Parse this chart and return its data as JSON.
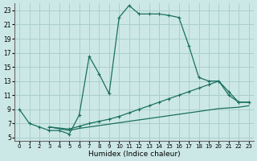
{
  "bg_color": "#cce8e6",
  "grid_color": "#aacfcc",
  "line_color": "#1a7060",
  "line1_x": [
    0,
    1,
    2,
    3,
    4,
    5,
    6,
    7,
    8,
    9,
    10,
    11,
    12,
    13,
    14,
    15,
    16,
    17,
    18,
    19,
    20,
    21,
    22,
    23
  ],
  "line1_y": [
    9,
    7,
    6.5,
    6.0,
    6.0,
    5.5,
    8.2,
    16.5,
    14.0,
    11.2,
    22.0,
    23.7,
    22.5,
    22.5,
    22.5,
    22.3,
    22.0,
    18.0,
    13.5,
    13.0,
    13.0,
    11.5,
    10.0,
    10.0
  ],
  "line2_x": [
    3,
    5,
    6,
    7,
    8,
    9,
    10,
    11,
    12,
    13,
    14,
    15,
    16,
    17,
    18,
    19,
    20,
    21,
    22,
    23
  ],
  "line2_y": [
    6.5,
    6.0,
    6.3,
    6.5,
    6.7,
    6.9,
    7.1,
    7.3,
    7.5,
    7.7,
    7.9,
    8.1,
    8.3,
    8.5,
    8.7,
    8.9,
    9.1,
    9.2,
    9.3,
    9.5
  ],
  "line3_x": [
    3,
    5,
    6,
    7,
    8,
    9,
    10,
    11,
    12,
    13,
    14,
    15,
    16,
    17,
    18,
    19,
    20,
    21,
    22,
    23
  ],
  "line3_y": [
    6.5,
    6.2,
    6.6,
    7.0,
    7.3,
    7.6,
    8.0,
    8.5,
    9.0,
    9.5,
    10.0,
    10.5,
    11.0,
    11.5,
    12.0,
    12.5,
    13.0,
    11.0,
    10.0,
    10.0
  ],
  "xlabel": "Humidex (Indice chaleur)",
  "xlim": [
    -0.5,
    23.5
  ],
  "ylim": [
    4.5,
    24
  ],
  "xticks": [
    0,
    1,
    2,
    3,
    4,
    5,
    6,
    7,
    8,
    9,
    10,
    11,
    12,
    13,
    14,
    15,
    16,
    17,
    18,
    19,
    20,
    21,
    22,
    23
  ],
  "yticks": [
    5,
    7,
    9,
    11,
    13,
    15,
    17,
    19,
    21,
    23
  ]
}
